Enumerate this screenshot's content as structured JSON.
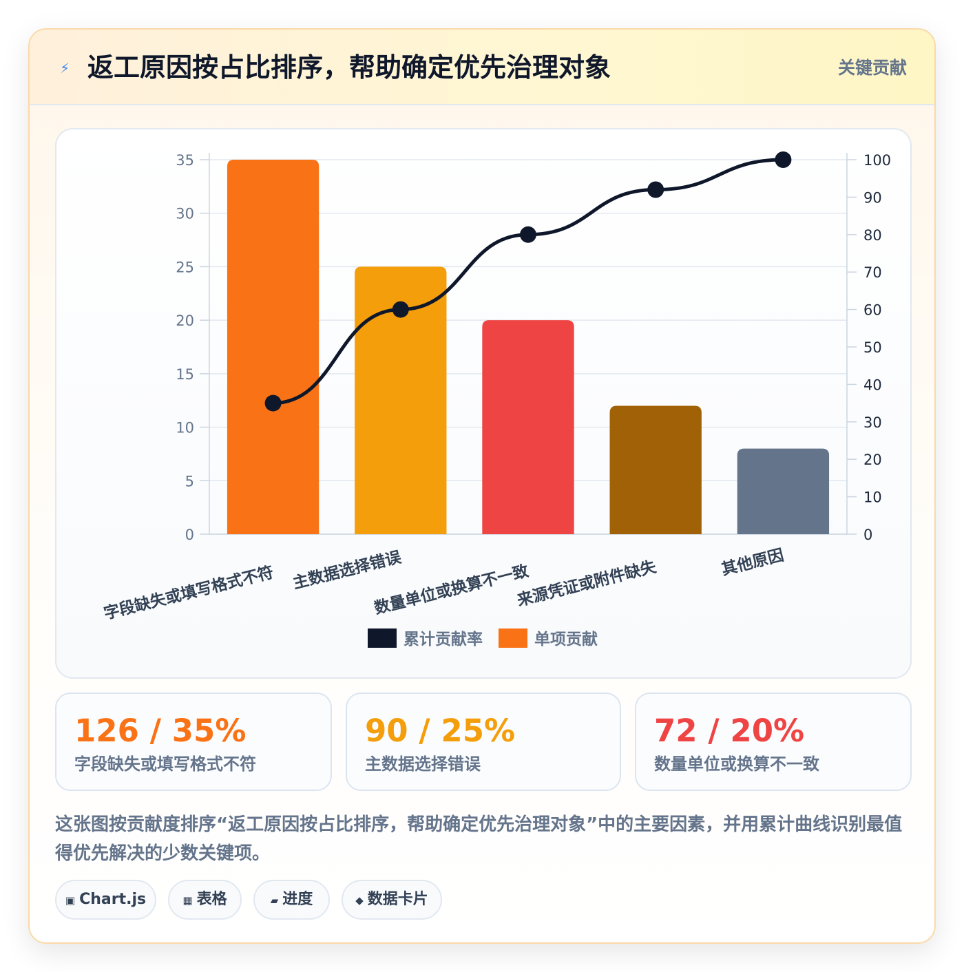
{
  "header": {
    "icon": "lightning-icon",
    "title": "返工原因按占比排序，帮助确定优先治理对象",
    "badge": "关键贡献"
  },
  "chart_data": {
    "type": "bar",
    "categories": [
      "字段缺失或填写格式不符",
      "主数据选择错误",
      "数量单位或换算不一致",
      "来源凭证或附件缺失",
      "其他原因"
    ],
    "series": [
      {
        "name": "单项贡献",
        "type": "bar",
        "axis": "left",
        "values": [
          35,
          25,
          20,
          12,
          8
        ],
        "colors": [
          "#f97316",
          "#f59e0b",
          "#ef4444",
          "#a16207",
          "#64748b"
        ]
      },
      {
        "name": "累计贡献率",
        "type": "line",
        "axis": "right",
        "values": [
          35,
          60,
          80,
          92,
          100
        ],
        "color": "#0f172a"
      }
    ],
    "yleft": {
      "min": 0,
      "max": 35,
      "ticks": [
        0,
        5,
        10,
        15,
        20,
        25,
        30,
        35
      ]
    },
    "yright": {
      "min": 0,
      "max": 100,
      "ticks": [
        0,
        10,
        20,
        30,
        40,
        50,
        60,
        70,
        80,
        90,
        100
      ]
    },
    "legend": {
      "placement": "bottom",
      "items": [
        {
          "label": "累计贡献率",
          "color": "#0f172a"
        },
        {
          "label": "单项贡献",
          "color": "#f97316"
        }
      ]
    },
    "grid": true
  },
  "kpis": [
    {
      "value": "126 / 35%",
      "label": "字段缺失或填写格式不符",
      "color": "#f97316"
    },
    {
      "value": "90 / 25%",
      "label": "主数据选择错误",
      "color": "#f59e0b"
    },
    {
      "value": "72 / 20%",
      "label": "数量单位或换算不一致",
      "color": "#ef4444"
    }
  ],
  "description": "这张图按贡献度排序“返工原因按占比排序，帮助确定优先治理对象”中的主要因素，并用累计曲线识别最值得优先解决的少数关键项。",
  "tags": [
    {
      "icon": "▣",
      "label": "Chart.js"
    },
    {
      "icon": "▦",
      "label": "表格"
    },
    {
      "icon": "▰",
      "label": "进度"
    },
    {
      "icon": "◆",
      "label": "数据卡片"
    }
  ]
}
